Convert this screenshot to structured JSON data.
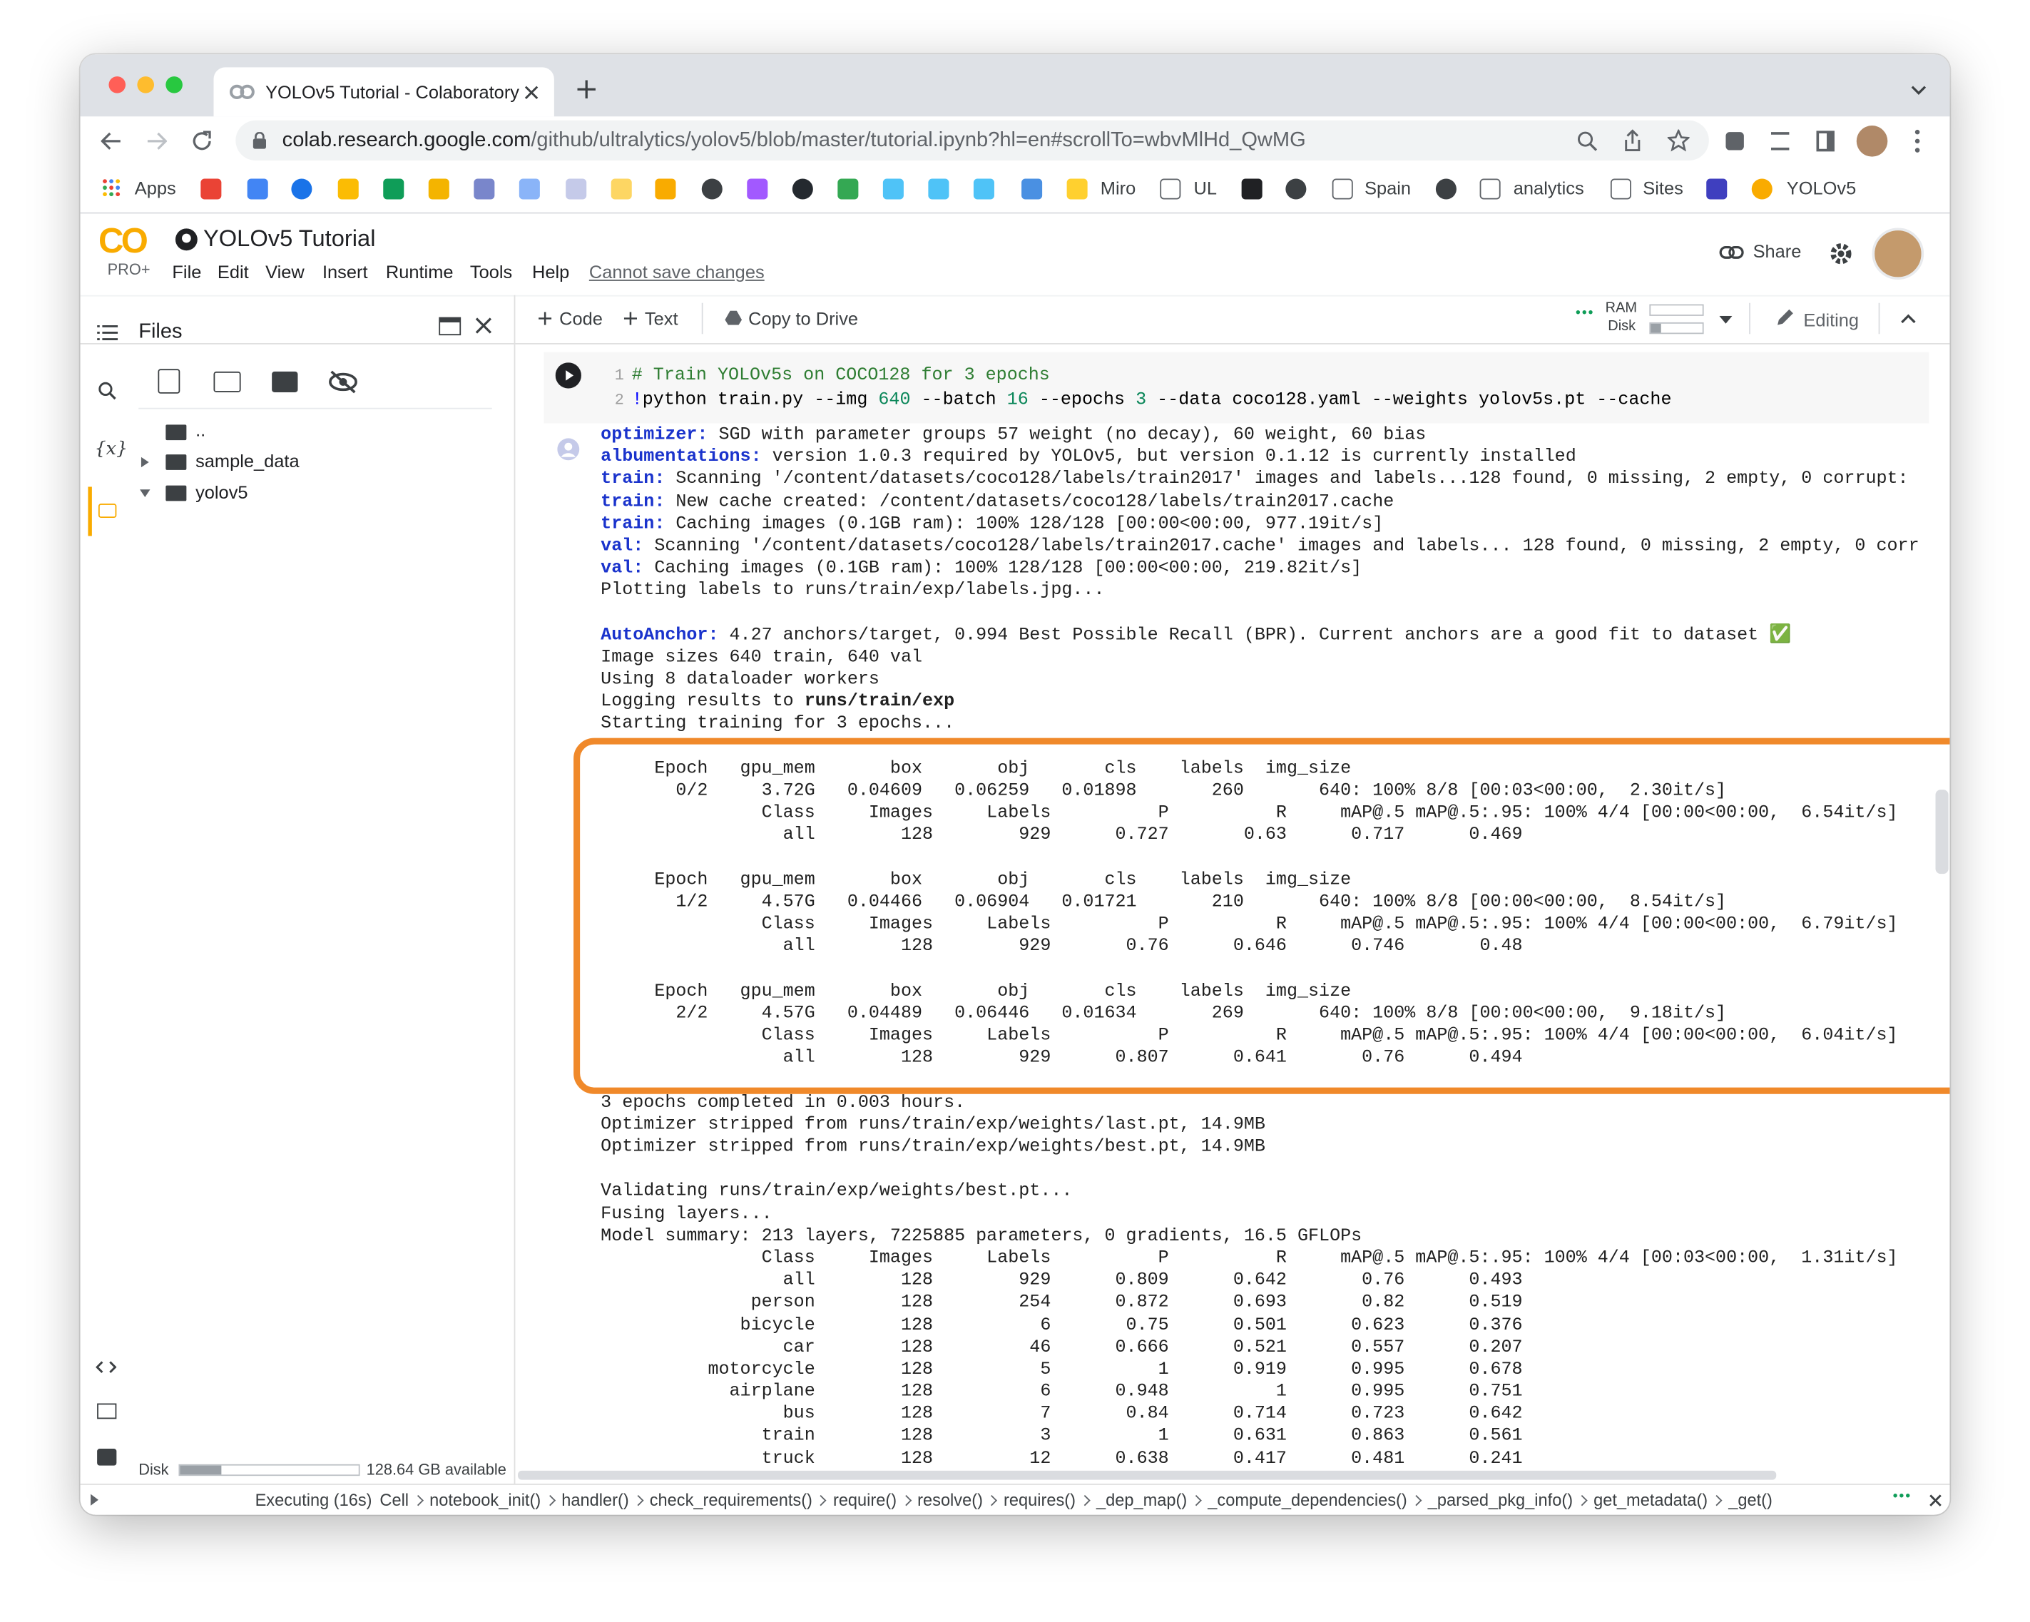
{
  "browser": {
    "tab_title": "YOLOv5 Tutorial - Colaboratory",
    "url_host": "colab.research.google.com",
    "url_path": "/github/ultralytics/yolov5/blob/master/tutorial.ipynb?hl=en#scrollTo=wbvMlHd_QwMG",
    "bookmarks": [
      "Apps",
      "Miro",
      "UL",
      "Spain",
      "analytics",
      "Sites",
      "YOLOv5"
    ]
  },
  "header": {
    "logo": "CO",
    "plan": "PRO+",
    "title": "YOLOv5 Tutorial",
    "menu": [
      "File",
      "Edit",
      "View",
      "Insert",
      "Runtime",
      "Tools",
      "Help"
    ],
    "save_notice": "Cannot save changes",
    "share": "Share"
  },
  "toolbar": {
    "code": "Code",
    "text": "Text",
    "copy": "Copy to Drive",
    "ram": "RAM",
    "disk": "Disk",
    "mode": "Editing"
  },
  "sidebar": {
    "title": "Files",
    "variables": "{x}",
    "tree": [
      "..",
      "sample_data",
      "yolov5"
    ],
    "disk_label": "Disk",
    "disk_free": "128.64 GB available"
  },
  "cell": {
    "line_numbers": [
      "1",
      "2"
    ],
    "code": [
      [
        {
          "text": "# Train YOLOv5s on COCO128 for 3 epochs",
          "color": "#2e7d32"
        }
      ],
      [
        {
          "text": "!",
          "color": "#0000ff"
        },
        {
          "text": "python train.py --img ",
          "color": "#000000"
        },
        {
          "text": "640",
          "color": "#098658"
        },
        {
          "text": " --batch ",
          "color": "#000000"
        },
        {
          "text": "16",
          "color": "#098658"
        },
        {
          "text": " --epochs ",
          "color": "#000000"
        },
        {
          "text": "3",
          "color": "#098658"
        },
        {
          "text": " --data coco128.yaml --weights yolov5s.pt --cache",
          "color": "#000000"
        }
      ]
    ]
  },
  "output": [
    [
      [
        {
          "key": "optimizer:"
        },
        " SGD with parameter groups 57 weight (no decay), 60 weight, 60 bias"
      ],
      [
        {
          "key": "albumentations:"
        },
        " version 1.0.3 required by YOLOv5, but version 0.1.12 is currently installed"
      ],
      [
        {
          "key": "train:"
        },
        " Scanning '/content/datasets/coco128/labels/train2017' images and labels...128 found, 0 missing, 2 empty, 0 corrupt:"
      ],
      [
        {
          "key": "train:"
        },
        " New cache created: /content/datasets/coco128/labels/train2017.cache"
      ],
      [
        {
          "key": "train:"
        },
        " Caching images (0.1GB ram): 100% 128/128 [00:00<00:00, 977.19it/s]"
      ],
      [
        {
          "key": "val:"
        },
        " Scanning '/content/datasets/coco128/labels/train2017.cache' images and labels... 128 found, 0 missing, 2 empty, 0 corr"
      ],
      [
        {
          "key": "val:"
        },
        " Caching images (0.1GB ram): 100% 128/128 [00:00<00:00, 219.82it/s]"
      ],
      [
        "Plotting labels to runs/train/exp/labels.jpg..."
      ]
    ],
    [
      [
        {
          "key": "AutoAnchor:"
        },
        " 4.27 anchors/target, 0.994 Best Possible Recall (BPR). Current anchors are a good fit to dataset ✅"
      ],
      [
        "Image sizes 640 train, 640 val"
      ],
      [
        "Using 8 dataloader workers"
      ],
      [
        "Logging results to ",
        {
          "bold": "runs/train/exp"
        }
      ],
      [
        "Starting training for 3 epochs..."
      ]
    ],
    [
      [
        "     Epoch   gpu_mem       box       obj       cls    labels  img_size"
      ],
      [
        "       0/2     3.72G   0.04609   0.06259   0.01898       260       640: 100% 8/8 [00:03<00:00,  2.30it/s]"
      ],
      [
        "               Class     Images     Labels          P          R     mAP@.5 mAP@.5:.95: 100% 4/4 [00:00<00:00,  6.54it/s]"
      ],
      [
        "                 all        128        929      0.727       0.63      0.717      0.469"
      ]
    ],
    [
      [
        "     Epoch   gpu_mem       box       obj       cls    labels  img_size"
      ],
      [
        "       1/2     4.57G   0.04466   0.06904   0.01721       210       640: 100% 8/8 [00:00<00:00,  8.54it/s]"
      ],
      [
        "               Class     Images     Labels          P          R     mAP@.5 mAP@.5:.95: 100% 4/4 [00:00<00:00,  6.79it/s]"
      ],
      [
        "                 all        128        929       0.76      0.646      0.746       0.48"
      ]
    ],
    [
      [
        "     Epoch   gpu_mem       box       obj       cls    labels  img_size"
      ],
      [
        "       2/2     4.57G   0.04489   0.06446   0.01634       269       640: 100% 8/8 [00:00<00:00,  9.18it/s]"
      ],
      [
        "               Class     Images     Labels          P          R     mAP@.5 mAP@.5:.95: 100% 4/4 [00:00<00:00,  6.04it/s]"
      ],
      [
        "                 all        128        929      0.807      0.641       0.76      0.494"
      ]
    ],
    [
      [
        "3 epochs completed in 0.003 hours."
      ],
      [
        "Optimizer stripped from runs/train/exp/weights/last.pt, 14.9MB"
      ],
      [
        "Optimizer stripped from runs/train/exp/weights/best.pt, 14.9MB"
      ]
    ],
    [
      [
        "Validating runs/train/exp/weights/best.pt..."
      ],
      [
        "Fusing layers... "
      ],
      [
        "Model summary: 213 layers, 7225885 parameters, 0 gradients, 16.5 GFLOPs"
      ],
      [
        "               Class     Images     Labels          P          R     mAP@.5 mAP@.5:.95: 100% 4/4 [00:03<00:00,  1.31it/s]"
      ],
      [
        "                 all        128        929      0.809      0.642       0.76      0.493"
      ],
      [
        "              person        128        254      0.872      0.693       0.82      0.519"
      ],
      [
        "             bicycle        128          6       0.75      0.501      0.623      0.376"
      ],
      [
        "                 car        128         46      0.666      0.521      0.557      0.207"
      ],
      [
        "          motorcycle        128          5          1      0.919      0.995      0.678"
      ],
      [
        "            airplane        128          6      0.948          1      0.995      0.751"
      ],
      [
        "                 bus        128          7       0.84      0.714      0.723      0.642"
      ],
      [
        "               train        128          3          1      0.631      0.863      0.561"
      ],
      [
        "               truck        128         12      0.638      0.417      0.481      0.241"
      ]
    ]
  ],
  "status": {
    "state": "Executing (16s)",
    "chain": [
      "Cell",
      "notebook_init()",
      "handler()",
      "check_requirements()",
      "require()",
      "resolve()",
      "requires()",
      "_dep_map()",
      "_compute_dependencies()",
      "_parsed_pkg_info()",
      "get_metadata()",
      "_get()"
    ]
  }
}
